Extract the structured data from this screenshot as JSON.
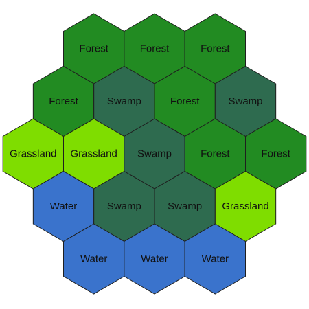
{
  "terrain_colors": {
    "Forest": "#228b22",
    "Swamp": "#2e6b4f",
    "Grassland": "#7fdd00",
    "Water": "#3a73cc"
  },
  "board": {
    "rows": [
      [
        "Forest",
        "Forest",
        "Forest"
      ],
      [
        "Forest",
        "Swamp",
        "Forest",
        "Swamp"
      ],
      [
        "Grassland",
        "Grassland",
        "Swamp",
        "Forest",
        "Forest"
      ],
      [
        "Water",
        "Swamp",
        "Swamp",
        "Grassland"
      ],
      [
        "Water",
        "Water",
        "Water"
      ]
    ]
  }
}
